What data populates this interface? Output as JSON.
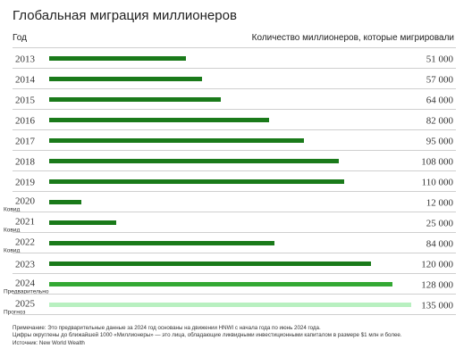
{
  "header": {
    "title": "Глобальная миграция миллионеров",
    "left_label": "Год",
    "right_label": "Количество миллионеров, которые мигрировали"
  },
  "colors": {
    "bar_dark": "#1a7a1a",
    "bar_medium": "#33a833",
    "bar_light": "#b8f0c0",
    "separator": "#cfcfcf"
  },
  "chart_data": {
    "type": "bar",
    "orientation": "horizontal",
    "title": "Глобальная миграция миллионеров",
    "xlabel": "Количество миллионеров, которые мигрировали",
    "ylabel": "Год",
    "xlim": [
      0,
      135000
    ],
    "grid": false,
    "categories": [
      "2013",
      "2014",
      "2015",
      "2016",
      "2017",
      "2018",
      "2019",
      "2020",
      "2021",
      "2022",
      "2023",
      "2024",
      "2025"
    ],
    "sublabels": [
      "",
      "",
      "",
      "",
      "",
      "",
      "",
      "Ковид",
      "Ковид",
      "Ковид",
      "",
      "Предварительно",
      "Прогноз"
    ],
    "values": [
      51000,
      57000,
      64000,
      82000,
      95000,
      108000,
      110000,
      12000,
      25000,
      84000,
      120000,
      128000,
      135000
    ],
    "value_labels": [
      "51 000",
      "57 000",
      "64 000",
      "82 000",
      "95 000",
      "108 000",
      "110 000",
      "12 000",
      "25 000",
      "84 000",
      "120 000",
      "128 000",
      "135 000"
    ],
    "bar_styles": [
      "dark",
      "dark",
      "dark",
      "dark",
      "dark",
      "dark",
      "dark",
      "dark",
      "dark",
      "dark",
      "dark",
      "medium",
      "light"
    ]
  },
  "notes": [
    "Примечание: Это предварительные данные за 2024 год основаны на движении HNWI с начала года по июнь 2024 года.",
    "Цифры округлены до ближайшей 1000 «Миллионеры» — это лица, обладающие ликвидными инвестиционными капиталом в размере $1 млн и более.",
    "Источник: New World Wealth"
  ]
}
